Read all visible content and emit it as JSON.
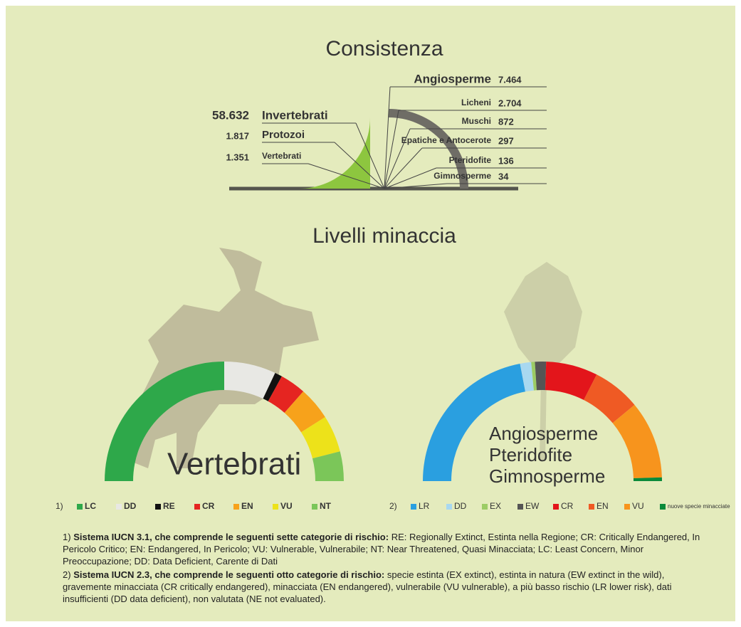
{
  "heading": "Livelli minaccia",
  "chart_data": [
    {
      "type": "fan",
      "title": "Consistenza",
      "groups": [
        {
          "side": "left",
          "color": "#8dc63f",
          "categories": [
            "Invertebrati",
            "Protozoi",
            "Vertebrati"
          ],
          "values": [
            58632,
            1817,
            1351
          ],
          "value_labels": [
            "58.632",
            "1.817",
            "1.351"
          ]
        },
        {
          "side": "right",
          "color": "#6f6d66",
          "categories": [
            "Angiosperme",
            "Licheni",
            "Muschi",
            "Epatiche e Antocerote",
            "Pteridofite",
            "Gimnosperme"
          ],
          "values": [
            7464,
            2704,
            872,
            297,
            136,
            34
          ],
          "value_labels": [
            "7.464",
            "2.704",
            "872",
            "297",
            "136",
            "34"
          ]
        }
      ]
    },
    {
      "type": "semidonut",
      "title": [
        "Vertebrati"
      ],
      "legend_prefix": "1)",
      "categories": [
        "LC",
        "DD",
        "RE",
        "CR",
        "EN",
        "VU",
        "NT"
      ],
      "values": [
        50,
        14,
        2,
        7,
        9,
        10,
        8
      ],
      "colors": [
        "#2ea84a",
        "#e8e8e4",
        "#111111",
        "#e52521",
        "#f7a21b",
        "#ede21a",
        "#7bc659"
      ]
    },
    {
      "type": "semidonut",
      "title": [
        "Angiosperme",
        "Pteridofite",
        "Gimnosperme"
      ],
      "legend_prefix": "2)",
      "categories": [
        "LR",
        "DD",
        "EX",
        "EW",
        "CR",
        "EN",
        "VU",
        "nuove specie minacciate"
      ],
      "values": [
        44,
        3,
        1,
        3,
        14,
        13,
        21,
        1
      ],
      "colors": [
        "#2a9fe0",
        "#a8d8f0",
        "#9ccc65",
        "#555555",
        "#e3151b",
        "#ef5a24",
        "#f7941d",
        "#0a8a3a"
      ]
    }
  ],
  "notes": [
    {
      "prefix": "1)",
      "lead": "Sistema IUCN 3.1, che comprende le seguenti sette categorie di rischio:",
      "text": "RE: Regionally Extinct, Estinta nella Regione; CR: Critically Endangered, In Pericolo Critico; EN: Endangered, In Pericolo; VU: Vulnerable, Vulnerabile; NT: Near Threatened, Quasi Minacciata; LC: Least Concern, Minor Preoccupazione; DD: Data Deficient, Carente di Dati"
    },
    {
      "prefix": "2)",
      "lead": "Sistema IUCN 2.3, che comprende le seguenti otto categorie di rischio:",
      "text": "specie estinta (EX extinct), estinta in natura (EW extinct in the wild), gravemente minacciata (CR critically endangered), minacciata (EN endangered), vulnerabile (VU vulnerable), a più basso rischio (LR lower risk), dati insufficienti (DD data deficient), non valutata (NE not evaluated)."
    }
  ]
}
